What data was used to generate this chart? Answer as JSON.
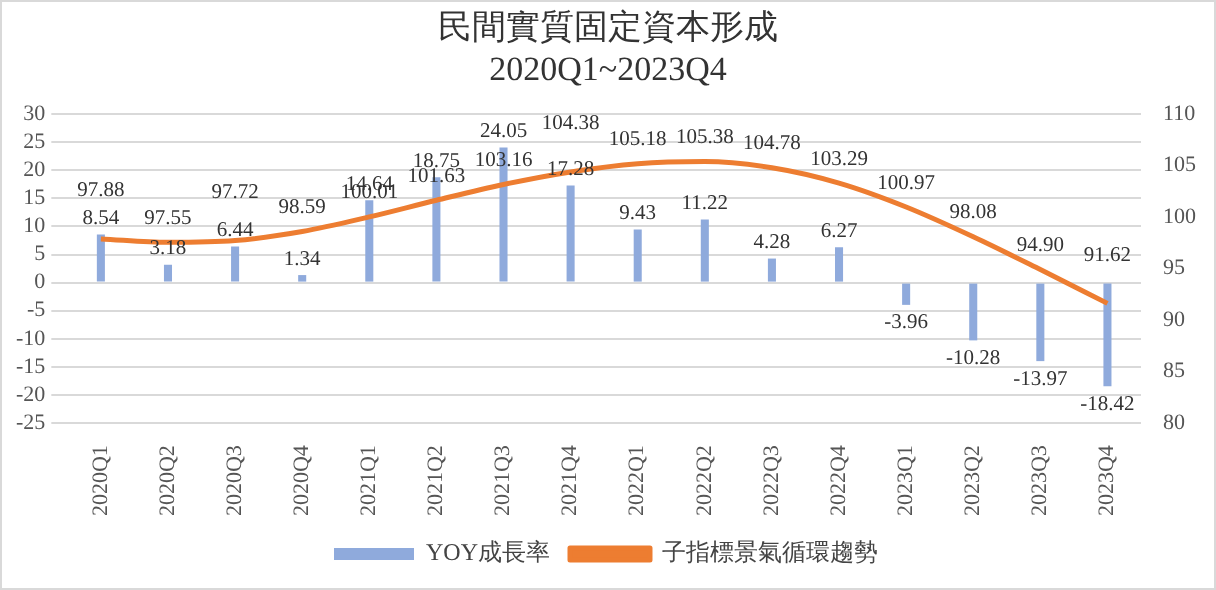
{
  "chart_data": {
    "type": "bar",
    "title": "民間實質固定資本形成",
    "subtitle": "2020Q1~2023Q4",
    "categories": [
      "2020Q1",
      "2020Q2",
      "2020Q3",
      "2020Q4",
      "2021Q1",
      "2021Q2",
      "2021Q3",
      "2021Q4",
      "2022Q1",
      "2022Q2",
      "2022Q3",
      "2022Q4",
      "2023Q1",
      "2023Q2",
      "2023Q3",
      "2023Q4"
    ],
    "series": [
      {
        "name": "YOY成長率",
        "color": "#8faadc",
        "values": [
          8.54,
          3.18,
          6.44,
          1.34,
          14.64,
          18.75,
          24.05,
          17.28,
          9.43,
          11.22,
          4.28,
          6.27,
          -3.96,
          -10.28,
          -13.97,
          -18.42
        ],
        "value_labels": [
          "8.54",
          "3.18",
          "6.44",
          "1.34",
          "14.64",
          "18.75",
          "24.05",
          "17.28",
          "9.43",
          "11.22",
          "4.28",
          "6.27",
          "-3.96",
          "-10.28",
          "-13.97",
          "-18.42"
        ]
      },
      {
        "name": "子指標景氣循環趨勢",
        "type": "line",
        "axis": "y2",
        "color": "#ed7d31",
        "values": [
          97.88,
          97.55,
          97.72,
          98.59,
          100.01,
          101.63,
          103.16,
          104.38,
          105.18,
          105.38,
          104.78,
          103.29,
          100.97,
          98.08,
          94.9,
          91.62
        ],
        "value_labels": [
          "97.88",
          "97.55",
          "97.72",
          "98.59",
          "100.01",
          "101.63",
          "103.16",
          "104.38",
          "105.18",
          "105.38",
          "104.78",
          "103.29",
          "100.97",
          "98.08",
          "94.90",
          "91.62"
        ]
      }
    ],
    "ylim": [
      -25,
      30
    ],
    "yticks": [
      -25,
      -20,
      -15,
      -10,
      -5,
      0,
      5,
      10,
      15,
      20,
      25,
      30
    ],
    "y2lim": [
      80,
      110
    ],
    "y2ticks": [
      80,
      85,
      90,
      95,
      100,
      105,
      110
    ],
    "grid": "y",
    "legend": "bottom",
    "marker": "none",
    "data_labels": true
  }
}
